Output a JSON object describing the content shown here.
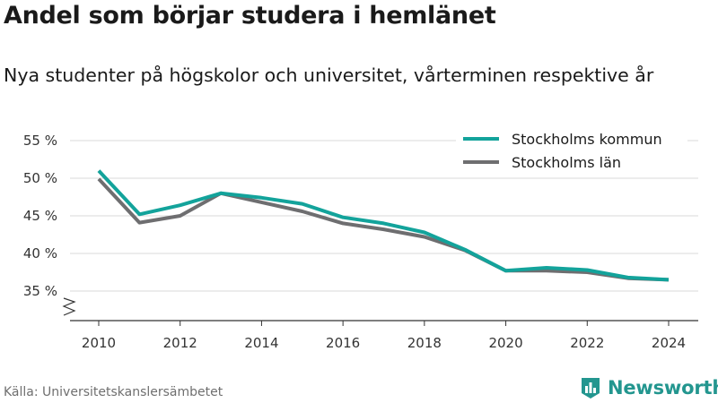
{
  "title": "Andel som börjar studera i hemlänet",
  "subtitle": "Nya studenter på högskolor och universitet, vårterminen respektive år",
  "source": "Källa: Universitetskanslersämbetet",
  "brand": "Newsworthy",
  "colors": {
    "teal": "#13a39b",
    "gray": "#6e6e70",
    "grid": "#d9d9d9",
    "brand": "#23968f"
  },
  "chart_data": {
    "type": "line",
    "x": [
      2010,
      2011,
      2012,
      2013,
      2014,
      2015,
      2016,
      2017,
      2018,
      2019,
      2020,
      2021,
      2022,
      2023,
      2024
    ],
    "series": [
      {
        "name": "Stockholms kommun",
        "color": "#13a39b",
        "values": [
          51.0,
          45.2,
          46.4,
          48.0,
          47.4,
          46.6,
          44.8,
          44.0,
          42.8,
          40.5,
          37.7,
          38.1,
          37.8,
          36.8,
          36.5
        ]
      },
      {
        "name": "Stockholms län",
        "color": "#6e6e70",
        "values": [
          49.9,
          44.1,
          45.0,
          48.0,
          46.8,
          45.6,
          44.0,
          43.2,
          42.2,
          40.4,
          37.7,
          37.7,
          37.5,
          36.7,
          36.5
        ]
      }
    ],
    "x_ticks": [
      2010,
      2012,
      2014,
      2016,
      2018,
      2020,
      2022,
      2024
    ],
    "x_tick_labels": [
      "2010",
      "2012",
      "2014",
      "2016",
      "2018",
      "2020",
      "2022",
      "2024"
    ],
    "y_ticks": [
      35,
      40,
      45,
      50,
      55
    ],
    "y_tick_labels": [
      "35 %",
      "40 %",
      "45 %",
      "50 %",
      "55 %"
    ],
    "ylim": [
      31.5,
      56
    ],
    "xlim": [
      2009.5,
      2024.5
    ],
    "xlabel": "",
    "ylabel": "",
    "grid": true,
    "broken_y_axis": true,
    "legend_position": "top-right"
  }
}
